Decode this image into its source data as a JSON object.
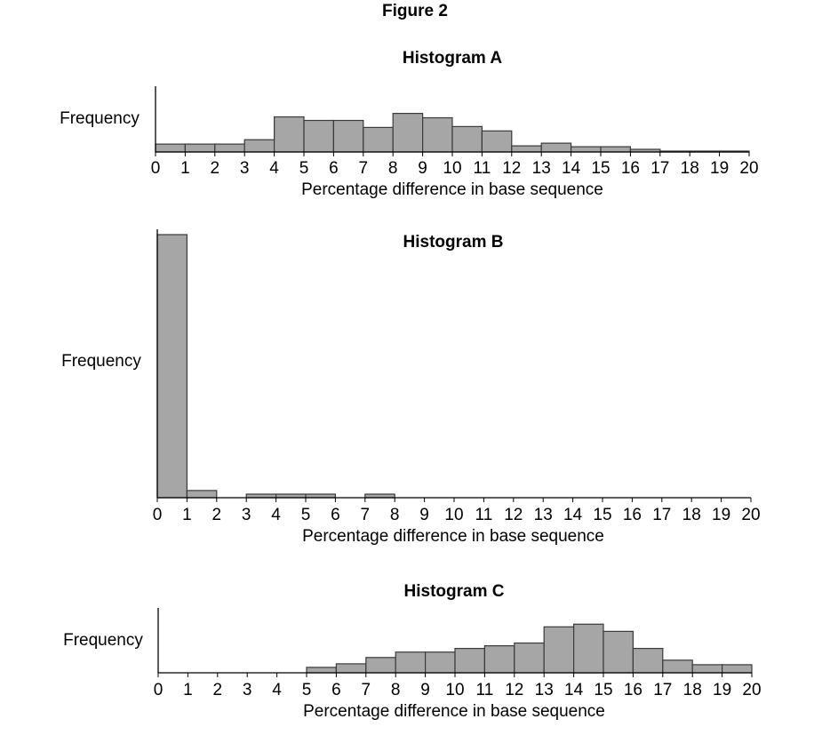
{
  "figure_title": "Figure 2",
  "chart_data": [
    {
      "type": "bar",
      "title": "Histogram A",
      "xlabel": "Percentage difference in base sequence",
      "ylabel": "Frequency",
      "x_ticks": [
        0,
        1,
        2,
        3,
        4,
        5,
        6,
        7,
        8,
        9,
        10,
        11,
        12,
        13,
        14,
        15,
        16,
        17,
        18,
        19,
        20
      ],
      "bin_width": 1,
      "bins": [
        0,
        1,
        2,
        3,
        4,
        5,
        6,
        7,
        8,
        9,
        10,
        11,
        12,
        13,
        14,
        15,
        16,
        17,
        18,
        19
      ],
      "values": [
        9,
        9,
        9,
        14,
        40,
        36,
        36,
        28,
        44,
        39,
        29,
        24,
        7,
        10,
        6,
        6,
        3,
        1,
        1,
        1
      ],
      "ylim": [
        0,
        75
      ],
      "colors": {
        "bar": "#a6a6a6",
        "edge": "#3a3a3a"
      }
    },
    {
      "type": "bar",
      "title": "Histogram B",
      "xlabel": "Percentage difference in base sequence",
      "ylabel": "Frequency",
      "x_ticks": [
        0,
        1,
        2,
        3,
        4,
        5,
        6,
        7,
        8,
        9,
        10,
        11,
        12,
        13,
        14,
        15,
        16,
        17,
        18,
        19,
        20
      ],
      "bin_width": 1,
      "bins": [
        0,
        1,
        2,
        3,
        4,
        5,
        6,
        7,
        8,
        9,
        10,
        11,
        12,
        13,
        14,
        15,
        16,
        17,
        18,
        19
      ],
      "values": [
        294,
        8,
        0,
        4,
        4,
        4,
        0,
        4,
        0,
        0,
        0,
        0,
        0,
        0,
        0,
        0,
        0,
        0,
        0,
        0
      ],
      "ylim": [
        0,
        300
      ],
      "colors": {
        "bar": "#a6a6a6",
        "edge": "#3a3a3a"
      }
    },
    {
      "type": "bar",
      "title": "Histogram C",
      "xlabel": "Percentage difference in base sequence",
      "ylabel": "Frequency",
      "x_ticks": [
        0,
        1,
        2,
        3,
        4,
        5,
        6,
        7,
        8,
        9,
        10,
        11,
        12,
        13,
        14,
        15,
        16,
        17,
        18,
        19,
        20
      ],
      "bin_width": 1,
      "bins": [
        0,
        1,
        2,
        3,
        4,
        5,
        6,
        7,
        8,
        9,
        10,
        11,
        12,
        13,
        14,
        15,
        16,
        17,
        18,
        19
      ],
      "values": [
        0,
        0,
        0,
        0,
        0,
        6,
        10,
        17,
        23,
        23,
        27,
        30,
        33,
        51,
        54,
        46,
        27,
        14,
        9,
        9
      ],
      "ylim": [
        0,
        72
      ],
      "colors": {
        "bar": "#a6a6a6",
        "edge": "#3a3a3a"
      }
    }
  ]
}
